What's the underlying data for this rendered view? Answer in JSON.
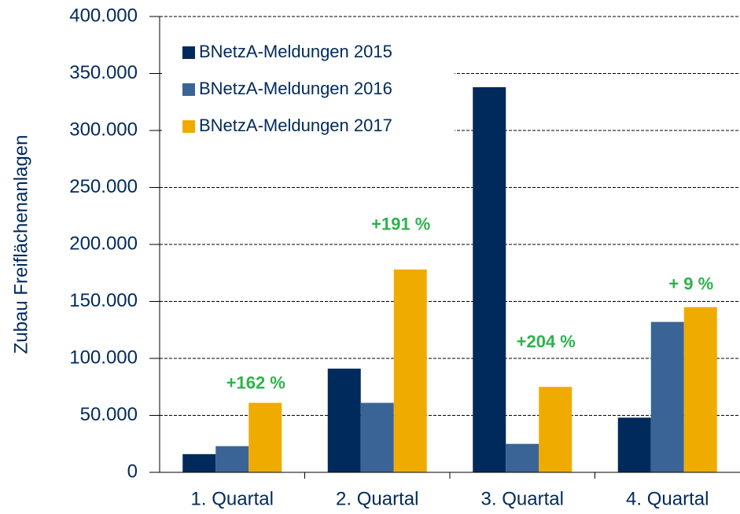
{
  "chart_data": {
    "type": "bar",
    "y_label": "Zubau Freiflächenanlagen",
    "categories": [
      "1. Quartal",
      "2. Quartal",
      "3. Quartal",
      "4. Quartal"
    ],
    "series": [
      {
        "name": "BNetzA-Meldungen 2015",
        "color": "#002a5c",
        "values": [
          16000,
          91000,
          338000,
          48000
        ]
      },
      {
        "name": "BNetzA-Meldungen 2016",
        "color": "#3a6496",
        "values": [
          23000,
          61000,
          25000,
          132000
        ]
      },
      {
        "name": "BNetzA-Meldungen 2017",
        "color": "#f0ab00",
        "values": [
          61000,
          178000,
          75000,
          145000
        ]
      }
    ],
    "annotations": [
      {
        "text": "+162 %",
        "category": "1. Quartal"
      },
      {
        "text": "+191 %",
        "category": "2. Quartal"
      },
      {
        "text": "+204 %",
        "category": "3. Quartal"
      },
      {
        "text": "+ 9 %",
        "category": "4. Quartal"
      }
    ],
    "ylim": [
      0,
      400000
    ],
    "yticks": [
      0,
      {
        "value": 50000,
        "label": "50.000"
      },
      {
        "value": 100000,
        "label": "100.000"
      },
      {
        "value": 150000,
        "label": "150.000"
      },
      {
        "value": 200000,
        "label": "200.000"
      },
      {
        "value": 250000,
        "label": "250.000"
      },
      {
        "value": 300000,
        "label": "300.000"
      },
      {
        "value": 350000,
        "label": "350.000"
      },
      {
        "value": 400000,
        "label": "400.000"
      }
    ],
    "grid": true,
    "legend": "upper left"
  }
}
